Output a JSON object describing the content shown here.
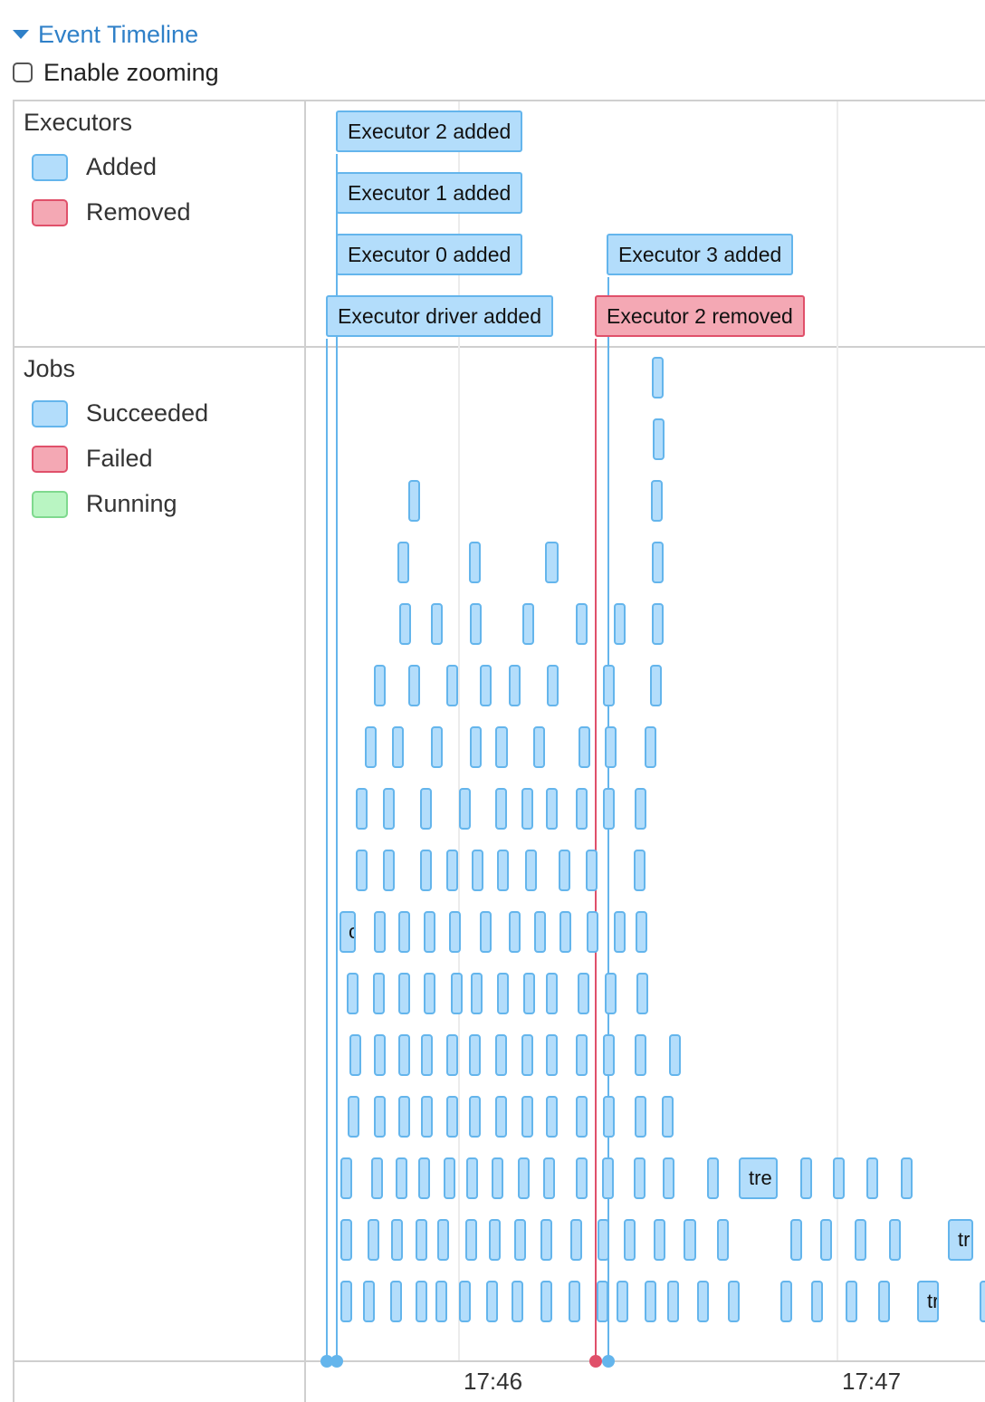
{
  "header": {
    "toggle_label": "Event Timeline",
    "zoom_label": "Enable zooming",
    "zoom_checked": false
  },
  "executors_group": {
    "title": "Executors",
    "legend": [
      {
        "label": "Added",
        "fill": "#b3ddfb",
        "border": "#64b5ec"
      },
      {
        "label": "Removed",
        "fill": "#f4a8b4",
        "border": "#e0506a"
      }
    ]
  },
  "jobs_group": {
    "title": "Jobs",
    "legend": [
      {
        "label": "Succeeded",
        "fill": "#b3ddfb",
        "border": "#64b5ec"
      },
      {
        "label": "Failed",
        "fill": "#f4a8b4",
        "border": "#e0506a"
      },
      {
        "label": "Running",
        "fill": "#b9f5c2",
        "border": "#7fd98e"
      }
    ]
  },
  "executor_events": [
    {
      "label": "Executor 2 added",
      "type": "added"
    },
    {
      "label": "Executor 1 added",
      "type": "added"
    },
    {
      "label": "Executor 0 added",
      "type": "added"
    },
    {
      "label": "Executor 3 added",
      "type": "added"
    },
    {
      "label": "Executor driver added",
      "type": "added"
    },
    {
      "label": "Executor 2 removed",
      "type": "removed"
    }
  ],
  "job_box_labels": [
    "c",
    "tre",
    "tr",
    "tr"
  ],
  "axis_ticks": [
    "17:46",
    "17:47"
  ],
  "colors": {
    "accent": "#2f80c8",
    "added_line": "#64b5ec",
    "removed_line": "#e0506a"
  }
}
